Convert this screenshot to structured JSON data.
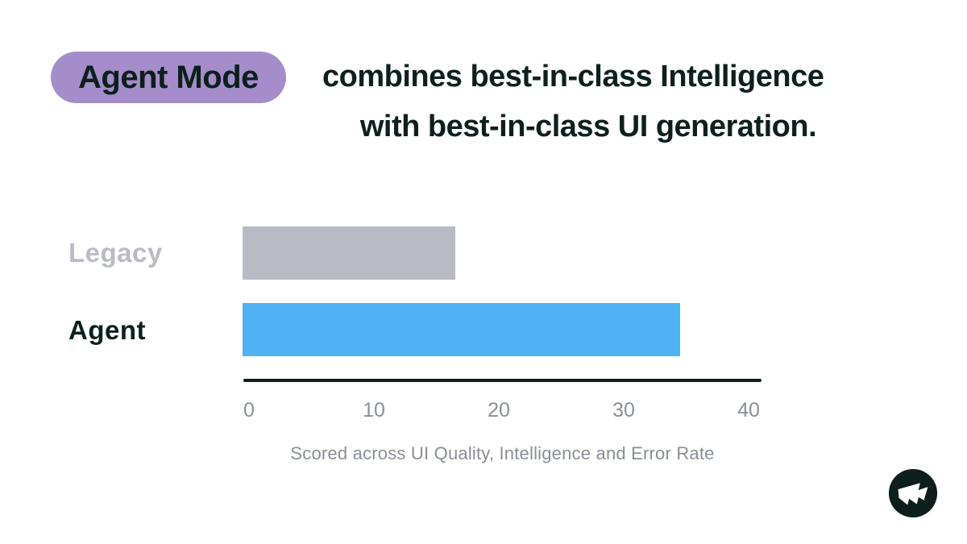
{
  "header": {
    "badge_label": "Agent Mode",
    "title_line1": "combines best-in-class Intelligence",
    "title_line2": "with best-in-class UI generation."
  },
  "chart_data": {
    "type": "bar",
    "orientation": "horizontal",
    "categories": [
      "Legacy",
      "Agent"
    ],
    "values": [
      17,
      35
    ],
    "xlim": [
      0,
      40
    ],
    "x_ticks": [
      "0",
      "10",
      "20",
      "30",
      "40"
    ],
    "x_tick_values": [
      0,
      10,
      20,
      30,
      40
    ],
    "caption": "Scored across UI Quality, Intelligence and Error Rate",
    "grid": false,
    "legend": false,
    "bar_colors": [
      "#b8bac4",
      "#4fb2f3"
    ],
    "label_colors": [
      "#b9bbc6",
      "#0e201d"
    ],
    "axis_color": "#0d1f1c",
    "tick_label_color": "#8b8f9a"
  },
  "colors": {
    "background": "#ffffff",
    "badge_background": "#a48dca",
    "badge_text": "#0d1f1c",
    "title_text": "#0d201d",
    "caption_text": "#8a8e99",
    "logo_background": "#0d1f1c",
    "logo_glyph": "#ffffff"
  },
  "logo": {
    "name": "brand-flag-logo"
  }
}
